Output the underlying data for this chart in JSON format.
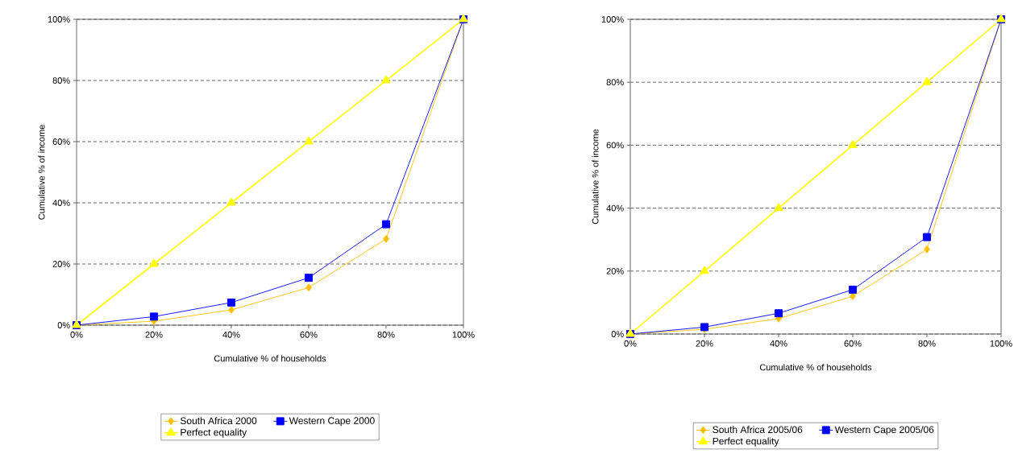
{
  "chart_data": [
    {
      "type": "line",
      "xlabel": "Cumulative % of households",
      "ylabel": "Cumulative % of income",
      "x": [
        0,
        20,
        40,
        60,
        80,
        100
      ],
      "series": [
        {
          "name": "South Africa 2000",
          "color": "#ffc000",
          "marker": "diamond",
          "values": [
            0,
            1.3,
            5,
            12.3,
            28.2,
            100
          ]
        },
        {
          "name": "Western Cape 2000",
          "color": "#0000ff",
          "marker": "square",
          "values": [
            0,
            2.8,
            7.4,
            15.5,
            33,
            100
          ]
        },
        {
          "name": "Perfect equality",
          "color": "#ffff00",
          "marker": "triangle",
          "values": [
            0,
            20,
            40,
            60,
            80,
            100
          ]
        }
      ],
      "xlim": [
        0,
        100
      ],
      "ylim": [
        0,
        100
      ],
      "xticks": [
        {
          "value": 0,
          "label": "0%"
        },
        {
          "value": 20,
          "label": "20%"
        },
        {
          "value": 40,
          "label": "40%"
        },
        {
          "value": 60,
          "label": "60%"
        },
        {
          "value": 80,
          "label": "80%"
        },
        {
          "value": 100,
          "label": "100%"
        }
      ],
      "yticks": [
        {
          "value": 0,
          "label": "0%"
        },
        {
          "value": 20,
          "label": "20%"
        },
        {
          "value": 40,
          "label": "40%"
        },
        {
          "value": 60,
          "label": "60%"
        },
        {
          "value": 80,
          "label": "80%"
        },
        {
          "value": 100,
          "label": "100%"
        }
      ],
      "grid": "y",
      "legend": "bottom"
    },
    {
      "type": "line",
      "xlabel": "Cumulative %  of households",
      "ylabel": "Cumulative % of income",
      "x": [
        0,
        20,
        40,
        60,
        80,
        100
      ],
      "series": [
        {
          "name": "South Africa 2005/06",
          "color": "#ffc000",
          "marker": "diamond",
          "values": [
            0,
            1.5,
            4.9,
            12,
            26.9,
            100
          ]
        },
        {
          "name": "Western Cape 2005/06",
          "color": "#0000ff",
          "marker": "square",
          "values": [
            0,
            2.2,
            6.6,
            14.1,
            30.8,
            100
          ]
        },
        {
          "name": "Perfect equality",
          "color": "#ffff00",
          "marker": "triangle",
          "values": [
            0,
            20,
            40,
            60,
            80,
            100
          ]
        }
      ],
      "xlim": [
        0,
        100
      ],
      "ylim": [
        0,
        100
      ],
      "xticks": [
        {
          "value": 0,
          "label": "0%"
        },
        {
          "value": 20,
          "label": "20%"
        },
        {
          "value": 40,
          "label": "40%"
        },
        {
          "value": 60,
          "label": "60%"
        },
        {
          "value": 80,
          "label": "80%"
        },
        {
          "value": 100,
          "label": "100%"
        }
      ],
      "yticks": [
        {
          "value": 0,
          "label": "0%"
        },
        {
          "value": 20,
          "label": "20%"
        },
        {
          "value": 40,
          "label": "40%"
        },
        {
          "value": 60,
          "label": "60%"
        },
        {
          "value": 80,
          "label": "80%"
        },
        {
          "value": 100,
          "label": "100%"
        }
      ],
      "grid": "y",
      "legend": "bottom"
    }
  ]
}
